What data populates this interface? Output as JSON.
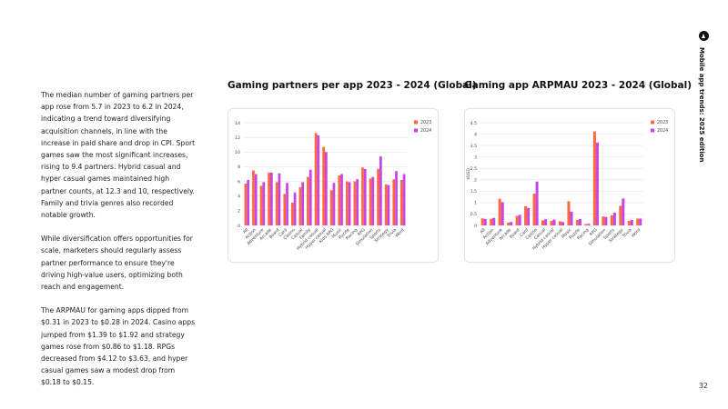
{
  "sidebar_text": {
    "paragraphs": [
      "The median number of gaming partners per app rose from 5.7 in 2023 to 6.2 in 2024, indicating a trend toward diversifying acquisition channels, in line with the increase in paid share and drop in CPI. Sport games saw the most significant increases, rising to 9.4 partners. Hybrid casual and hyper casual games maintained high partner counts, at 12.3 and 10, respectively. Family and trivia genres also recorded notable growth.",
      "While diversification offers opportunities for scale, marketers should regularly assess partner performance to ensure they're driving high-value users, optimizing both reach and engagement.",
      "The ARPMAU for gaming apps dipped from $0.31 in 2023 to $0.28 in 2024. Casino apps jumped from $1.39 to $1.92 and strategy games rose from $0.86 to $1.18. RPGs decreased from $4.12 to $3.63, and hyper casual games saw a modest drop from $0.18 to $0.15."
    ]
  },
  "brand": {
    "title": "Mobile app trends: 2025 edition",
    "logo": "appsflyer-logo-icon"
  },
  "page_number": "32",
  "colors": {
    "series_2023": "#ff6a3d",
    "series_2024": "#c845e6",
    "grid": "#e6e6e6",
    "text": "#444444"
  },
  "chart_data": [
    {
      "type": "bar",
      "title": "Gaming partners per app 2023 - 2024 (Global)",
      "ylabel": "",
      "ylim": [
        0,
        14
      ],
      "yticks": [
        "0",
        "2",
        "4",
        "6",
        "8",
        "10",
        "12",
        "14"
      ],
      "categories": [
        "All",
        "Action",
        "Adventure",
        "Arcade",
        "Board",
        "Card",
        "Casino",
        "Casual",
        "Family",
        "Hybrid casual",
        "Hyper casual",
        "Kids RPG",
        "Music",
        "Puzzle",
        "Racing",
        "RPG",
        "Simulation",
        "Sports",
        "Strategy",
        "Trivia",
        "Word"
      ],
      "series": [
        {
          "name": "2023",
          "values": [
            5.7,
            7.5,
            5.4,
            7.2,
            5.9,
            4.3,
            3.1,
            5.2,
            6.6,
            12.6,
            10.7,
            4.8,
            6.8,
            6.0,
            6.0,
            7.9,
            6.4,
            7.7,
            5.6,
            6.3,
            6.2
          ]
        },
        {
          "name": "2024",
          "values": [
            6.2,
            7.0,
            5.9,
            7.2,
            7.1,
            5.8,
            4.5,
            5.9,
            7.6,
            12.3,
            10.0,
            5.8,
            7.0,
            5.9,
            6.3,
            7.7,
            6.6,
            9.4,
            5.5,
            7.4,
            7.0
          ]
        }
      ]
    },
    {
      "type": "bar",
      "title": "Gaming app ARPMAU 2023 - 2024 (Global)",
      "ylabel": "$USD",
      "ylim": [
        0,
        4.5
      ],
      "yticks": [
        "0",
        "0.5",
        "1",
        "1.5",
        "2",
        "2.5",
        "3",
        "3.5",
        "4",
        "4.5"
      ],
      "categories": [
        "All",
        "Action",
        "Adventure",
        "Arcade",
        "Board",
        "Card",
        "Casino",
        "Casual",
        "Hybrid casual",
        "Hyper casual",
        "Music",
        "Puzzle",
        "Racing",
        "RPG",
        "Simulation",
        "Sports",
        "Strategy",
        "Trivia",
        "Word"
      ],
      "series": [
        {
          "name": "2023",
          "values": [
            0.31,
            0.29,
            1.17,
            0.12,
            0.42,
            0.84,
            1.39,
            0.22,
            0.2,
            0.18,
            1.06,
            0.25,
            0.06,
            4.12,
            0.39,
            0.44,
            0.86,
            0.2,
            0.3
          ]
        },
        {
          "name": "2024",
          "values": [
            0.28,
            0.33,
            1.02,
            0.15,
            0.46,
            0.77,
            1.92,
            0.27,
            0.26,
            0.15,
            0.6,
            0.28,
            0.07,
            3.63,
            0.37,
            0.56,
            1.18,
            0.24,
            0.3
          ]
        }
      ]
    }
  ]
}
